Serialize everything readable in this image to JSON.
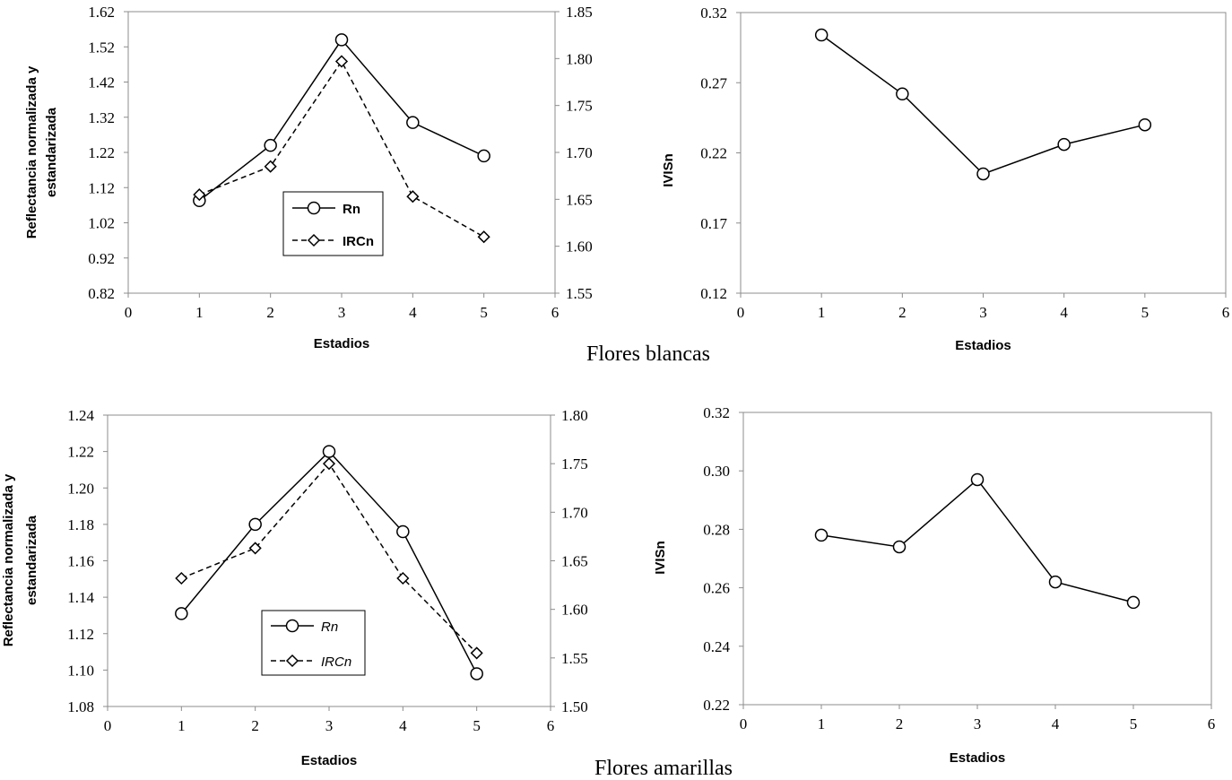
{
  "group_captions": [
    "Flores blancas",
    "Flores amarillas"
  ],
  "chart_data": [
    {
      "type": "line",
      "group": "Flores blancas",
      "xlabel": "Estadios",
      "ylabel": "Reflectancia normalizada y estandarizada",
      "xlim": [
        0,
        6
      ],
      "ylim": [
        0.82,
        1.62
      ],
      "y2lim": [
        1.55,
        1.85
      ],
      "x_ticks": [
        "0",
        "1",
        "2",
        "3",
        "4",
        "5",
        "6"
      ],
      "y_ticks": [
        "0.82",
        "0.92",
        "1.02",
        "1.12",
        "1.22",
        "1.32",
        "1.42",
        "1.52",
        "1.62"
      ],
      "y2_ticks": [
        "1.55",
        "1.60",
        "1.65",
        "1.70",
        "1.75",
        "1.80",
        "1.85"
      ],
      "legend_italic": false,
      "series": [
        {
          "name": "Rn",
          "axis": "left",
          "marker": "circle",
          "style": "solid",
          "x": [
            1,
            2,
            3,
            4,
            5
          ],
          "values": [
            1.083,
            1.24,
            1.54,
            1.305,
            1.21
          ]
        },
        {
          "name": "IRCn",
          "axis": "right",
          "marker": "diamond",
          "style": "dashed",
          "x": [
            1,
            2,
            3,
            4,
            5
          ],
          "values": [
            1.655,
            1.685,
            1.797,
            1.653,
            1.61
          ]
        }
      ]
    },
    {
      "type": "line",
      "group": "Flores blancas",
      "xlabel": "Estadios",
      "ylabel": "IVISn",
      "xlim": [
        0,
        6
      ],
      "ylim": [
        0.12,
        0.32
      ],
      "x_ticks": [
        "0",
        "1",
        "2",
        "3",
        "4",
        "5",
        "6"
      ],
      "y_ticks": [
        "0.12",
        "0.17",
        "0.22",
        "0.27",
        "0.32"
      ],
      "series": [
        {
          "name": "IVISn",
          "marker": "circle",
          "style": "solid",
          "x": [
            1,
            2,
            3,
            4,
            5
          ],
          "values": [
            0.304,
            0.262,
            0.205,
            0.226,
            0.24
          ]
        }
      ]
    },
    {
      "type": "line",
      "group": "Flores amarillas",
      "xlabel": "Estadios",
      "ylabel": "Reflectancia normalizada y estandarizada",
      "xlim": [
        0,
        6
      ],
      "ylim": [
        1.08,
        1.24
      ],
      "y2lim": [
        1.5,
        1.8
      ],
      "x_ticks": [
        "0",
        "1",
        "2",
        "3",
        "4",
        "5",
        "6"
      ],
      "y_ticks": [
        "1.08",
        "1.10",
        "1.12",
        "1.14",
        "1.16",
        "1.18",
        "1.20",
        "1.22",
        "1.24"
      ],
      "y2_ticks": [
        "1.50",
        "1.55",
        "1.60",
        "1.65",
        "1.70",
        "1.75",
        "1.80"
      ],
      "legend_italic": true,
      "series": [
        {
          "name": "Rn",
          "axis": "left",
          "marker": "circle",
          "style": "solid",
          "x": [
            1,
            2,
            3,
            4,
            5
          ],
          "values": [
            1.131,
            1.18,
            1.22,
            1.176,
            1.098
          ]
        },
        {
          "name": "IRCn",
          "axis": "right",
          "marker": "diamond",
          "style": "dashed",
          "x": [
            1,
            2,
            3,
            4,
            5
          ],
          "values": [
            1.632,
            1.663,
            1.75,
            1.632,
            1.555
          ]
        }
      ]
    },
    {
      "type": "line",
      "group": "Flores amarillas",
      "xlabel": "Estadios",
      "ylabel": "IVISn",
      "xlim": [
        0,
        6
      ],
      "ylim": [
        0.22,
        0.32
      ],
      "x_ticks": [
        "0",
        "1",
        "2",
        "3",
        "4",
        "5",
        "6"
      ],
      "y_ticks": [
        "0.22",
        "0.24",
        "0.26",
        "0.28",
        "0.30",
        "0.32"
      ],
      "series": [
        {
          "name": "IVISn",
          "marker": "circle",
          "style": "solid",
          "x": [
            1,
            2,
            3,
            4,
            5
          ],
          "values": [
            0.278,
            0.274,
            0.297,
            0.262,
            0.255
          ]
        }
      ]
    }
  ]
}
